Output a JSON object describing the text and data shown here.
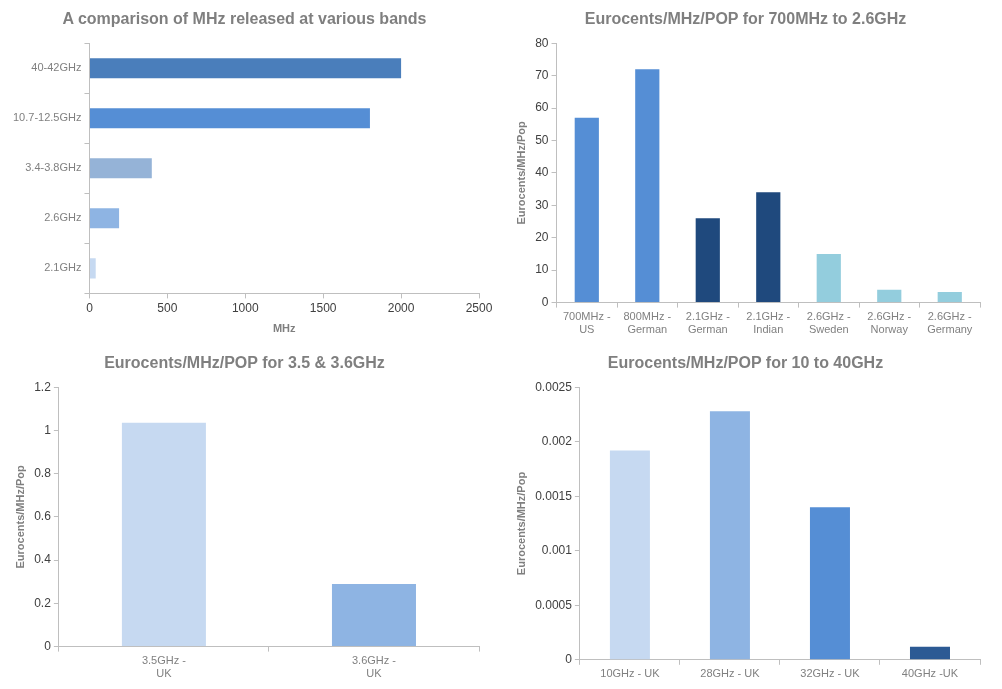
{
  "chart_data": [
    {
      "type": "bar",
      "orientation": "horizontal",
      "title": "A comparison of MHz released at various bands",
      "xlabel": "MHz",
      "categories": [
        "40-42GHz",
        "10.7-12.5GHz",
        "3.4-3.8GHz",
        "2.6GHz",
        "2.1GHz"
      ],
      "values": [
        2000,
        1800,
        400,
        190,
        40
      ],
      "colors": [
        "#4a7ebb",
        "#558ed5",
        "#95b3d7",
        "#8eb4e3",
        "#c6d9f1"
      ],
      "xlim": [
        0,
        2500
      ],
      "xticks": [
        0,
        500,
        1000,
        1500,
        2000,
        2500
      ],
      "grid": false,
      "legend": false
    },
    {
      "type": "bar",
      "title": "Eurocents/MHz/POP for 700MHz to 2.6GHz",
      "ylabel": "Eurocents/MHz/Pop",
      "categories": [
        "700MHz - US",
        "800MHz - German",
        "2.1GHz - German",
        "2.1GHz - Indian",
        "2.6GHz - Sweden",
        "2.6GHz - Norway",
        "2.6GHz - Germany"
      ],
      "values": [
        57,
        72,
        26,
        34,
        15,
        4,
        3.3
      ],
      "colors": [
        "#558ed5",
        "#558ed5",
        "#1f497d",
        "#1f497d",
        "#93cddd",
        "#93cddd",
        "#93cddd"
      ],
      "ylim": [
        0,
        80
      ],
      "yticks": [
        0,
        10,
        20,
        30,
        40,
        50,
        60,
        70,
        80
      ],
      "grid": false,
      "legend": false
    },
    {
      "type": "bar",
      "title": "Eurocents/MHz/POP for 3.5 & 3.6GHz",
      "ylabel": "Eurocents/MHz/Pop",
      "categories": [
        "3.5GHz - UK",
        "3.6GHz - UK"
      ],
      "values": [
        1.035,
        0.29
      ],
      "colors": [
        "#c6d9f1",
        "#8eb4e3"
      ],
      "ylim": [
        0,
        1.2
      ],
      "yticks": [
        0,
        0.2,
        0.4,
        0.6,
        0.8,
        1,
        1.2
      ],
      "grid": false,
      "legend": false
    },
    {
      "type": "bar",
      "title": "Eurocents/MHz/POP for 10 to 40GHz",
      "ylabel": "Eurocents/MHz/Pop",
      "categories": [
        "10GHz - UK",
        "28GHz - UK",
        "32GHz - UK",
        "40GHz -UK"
      ],
      "values": [
        0.00192,
        0.00228,
        0.0014,
        0.00012
      ],
      "colors": [
        "#c6d9f1",
        "#8eb4e3",
        "#558ed5",
        "#2c5a94"
      ],
      "ylim": [
        0,
        0.0025
      ],
      "yticks": [
        0,
        0.0005,
        0.001,
        0.0015,
        0.002,
        0.0025
      ],
      "grid": false,
      "legend": false
    }
  ]
}
